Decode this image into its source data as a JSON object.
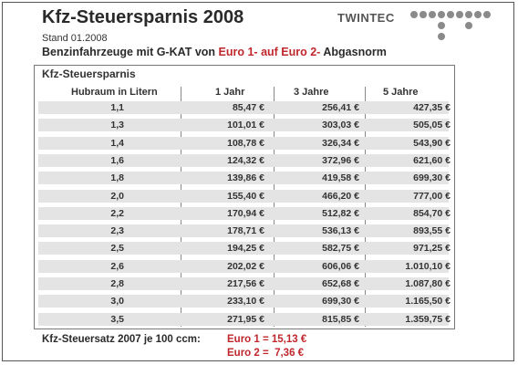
{
  "header": {
    "title": "Kfz-Steuersparnis 2008",
    "stand": "Stand 01.2008",
    "subtitle_prefix": "Benzinfahrzeuge mit G-KAT von ",
    "subtitle_highlight": "Euro 1- auf Euro 2-",
    "subtitle_suffix": " Abgasnorm"
  },
  "logo": {
    "text": "TWINTEC"
  },
  "table": {
    "title": "Kfz-Steuersparnis",
    "columns": [
      "Hubraum in Litern",
      "1 Jahr",
      "3 Jahre",
      "5 Jahre"
    ],
    "rows": [
      [
        "1,1",
        "85,47 €",
        "256,41 €",
        "427,35 €"
      ],
      [
        "1,3",
        "101,01 €",
        "303,03 €",
        "505,05 €"
      ],
      [
        "1,4",
        "108,78 €",
        "326,34 €",
        "543,90 €"
      ],
      [
        "1,6",
        "124,32 €",
        "372,96 €",
        "621,60 €"
      ],
      [
        "1,8",
        "139,86 €",
        "419,58 €",
        "699,30 €"
      ],
      [
        "2,0",
        "155,40 €",
        "466,20 €",
        "777,00 €"
      ],
      [
        "2,2",
        "170,94 €",
        "512,82 €",
        "854,70 €"
      ],
      [
        "2,3",
        "178,71 €",
        "536,13 €",
        "893,55 €"
      ],
      [
        "2,5",
        "194,25 €",
        "582,75 €",
        "971,25 €"
      ],
      [
        "2,6",
        "202,02 €",
        "606,06 €",
        "1.010,10 €"
      ],
      [
        "2,8",
        "217,56 €",
        "652,68 €",
        "1.087,80 €"
      ],
      [
        "3,0",
        "233,10 €",
        "699,30 €",
        "1.165,50 €"
      ],
      [
        "3,5",
        "271,95 €",
        "815,85 €",
        "1.359,75 €"
      ]
    ]
  },
  "footer": {
    "label": "Kfz-Steuersatz 2007 je 100 ccm:",
    "euro1": "Euro 1 = 15,13 €",
    "euro2": "Euro 2 =  7,36 €"
  },
  "colors": {
    "accent_red": "#c0272d",
    "band_gray": "#e4e4e4"
  }
}
